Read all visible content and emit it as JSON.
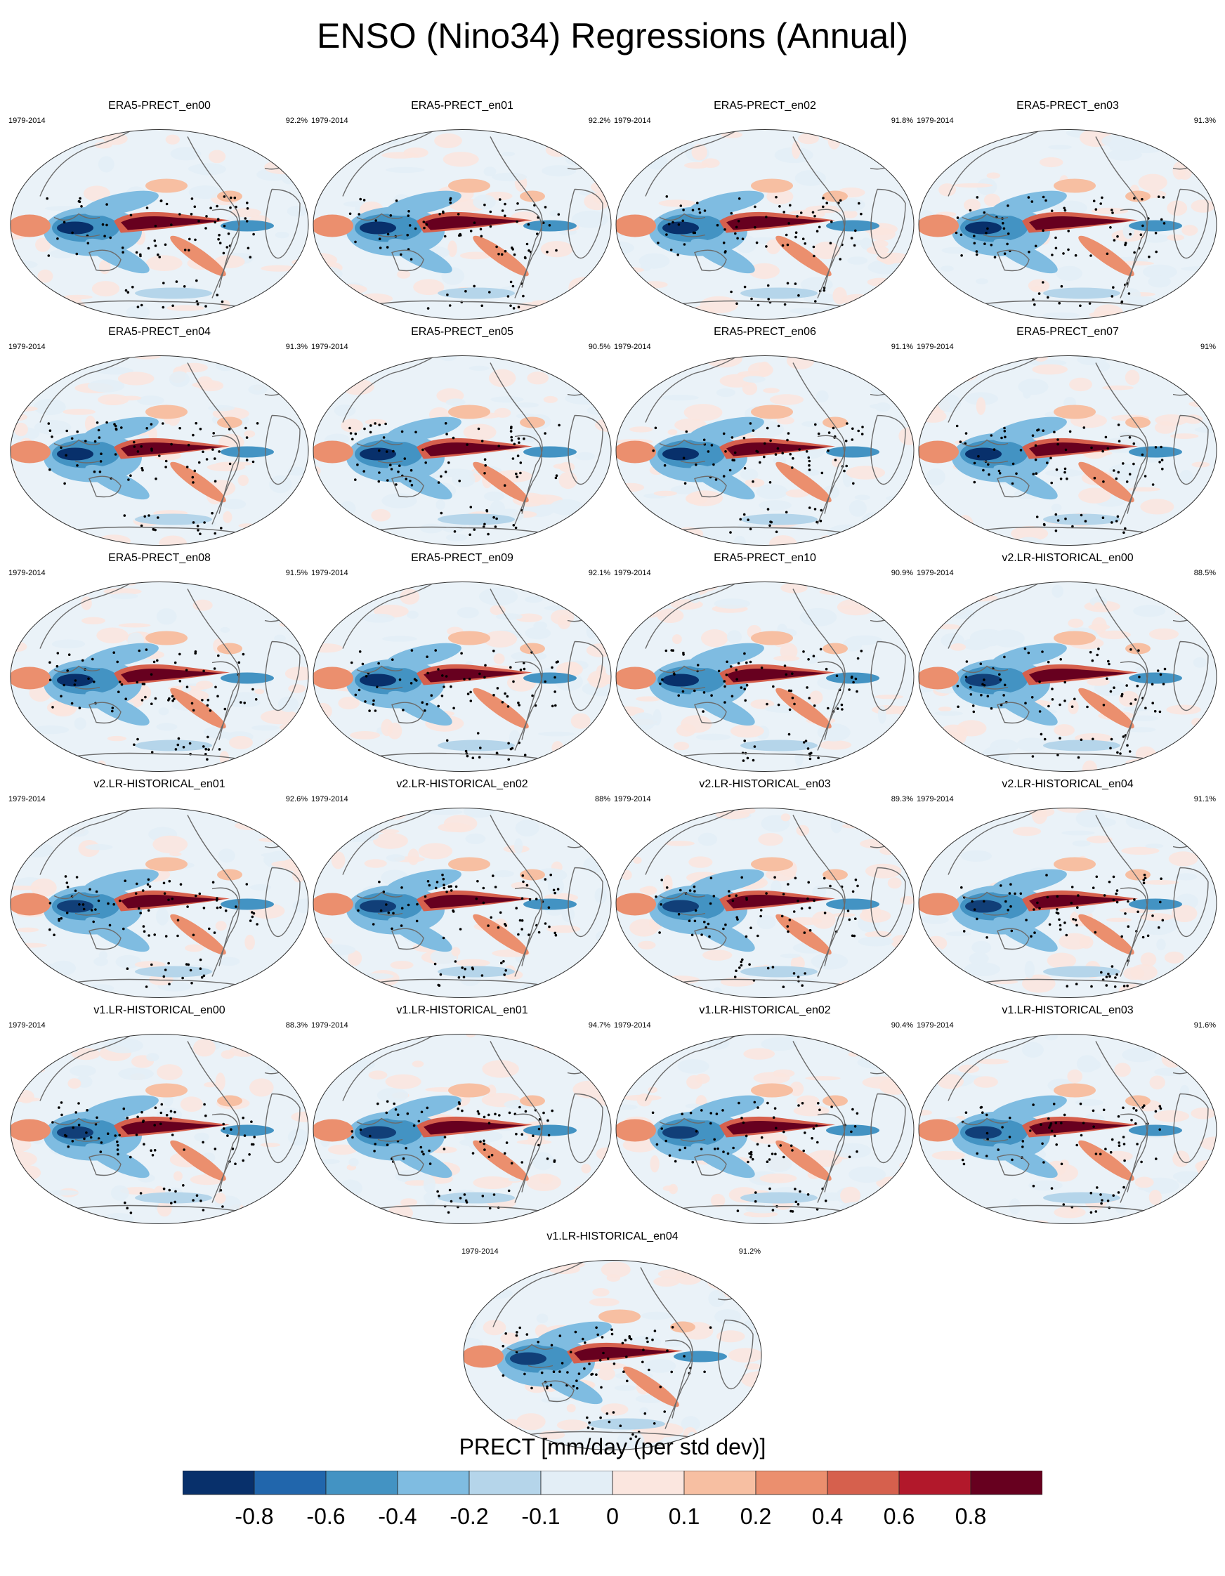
{
  "title": "ENSO (Nino34) Regressions (Annual)",
  "panels": [
    {
      "name": "ERA5-PRECT_en00",
      "period": "1979-2014",
      "pct": "92.2%",
      "group": "era5"
    },
    {
      "name": "ERA5-PRECT_en01",
      "period": "1979-2014",
      "pct": "92.2%",
      "group": "era5"
    },
    {
      "name": "ERA5-PRECT_en02",
      "period": "1979-2014",
      "pct": "91.8%",
      "group": "era5"
    },
    {
      "name": "ERA5-PRECT_en03",
      "period": "1979-2014",
      "pct": "91.3%",
      "group": "era5"
    },
    {
      "name": "ERA5-PRECT_en04",
      "period": "1979-2014",
      "pct": "91.3%",
      "group": "era5"
    },
    {
      "name": "ERA5-PRECT_en05",
      "period": "1979-2014",
      "pct": "90.5%",
      "group": "era5"
    },
    {
      "name": "ERA5-PRECT_en06",
      "period": "1979-2014",
      "pct": "91.1%",
      "group": "era5"
    },
    {
      "name": "ERA5-PRECT_en07",
      "period": "1979-2014",
      "pct": "91%",
      "group": "era5"
    },
    {
      "name": "ERA5-PRECT_en08",
      "period": "1979-2014",
      "pct": "91.5%",
      "group": "era5"
    },
    {
      "name": "ERA5-PRECT_en09",
      "period": "1979-2014",
      "pct": "92.1%",
      "group": "era5"
    },
    {
      "name": "ERA5-PRECT_en10",
      "period": "1979-2014",
      "pct": "90.9%",
      "group": "era5"
    },
    {
      "name": "v2.LR-HISTORICAL_en00",
      "period": "1979-2014",
      "pct": "88.5%",
      "group": "v2"
    },
    {
      "name": "v2.LR-HISTORICAL_en01",
      "period": "1979-2014",
      "pct": "92.6%",
      "group": "v2"
    },
    {
      "name": "v2.LR-HISTORICAL_en02",
      "period": "1979-2014",
      "pct": "88%",
      "group": "v2"
    },
    {
      "name": "v2.LR-HISTORICAL_en03",
      "period": "1979-2014",
      "pct": "89.3%",
      "group": "v2"
    },
    {
      "name": "v2.LR-HISTORICAL_en04",
      "period": "1979-2014",
      "pct": "91.1%",
      "group": "v2"
    },
    {
      "name": "v1.LR-HISTORICAL_en00",
      "period": "1979-2014",
      "pct": "88.3%",
      "group": "v1"
    },
    {
      "name": "v1.LR-HISTORICAL_en01",
      "period": "1979-2014",
      "pct": "94.7%",
      "group": "v1"
    },
    {
      "name": "v1.LR-HISTORICAL_en02",
      "period": "1979-2014",
      "pct": "90.4%",
      "group": "v1"
    },
    {
      "name": "v1.LR-HISTORICAL_en03",
      "period": "1979-2014",
      "pct": "91.6%",
      "group": "v1"
    },
    {
      "name": "v1.LR-HISTORICAL_en04",
      "period": "1979-2014",
      "pct": "91.2%",
      "group": "v1"
    }
  ],
  "colorbar": {
    "title": "PRECT [mm/day (per std dev)]",
    "tick_labels": [
      "-0.8",
      "-0.6",
      "-0.4",
      "-0.2",
      "-0.1",
      "0",
      "0.1",
      "0.2",
      "0.4",
      "0.6",
      "0.8"
    ],
    "colors": [
      "#08306b",
      "#2166ac",
      "#4393c3",
      "#7fbce1",
      "#b5d5ea",
      "#e3eef6",
      "#fbe6df",
      "#f7bfa2",
      "#eb8f6e",
      "#d6604d",
      "#b2182b",
      "#67001f"
    ]
  },
  "chart_data": {
    "type": "heatmap",
    "title": "ENSO (Nino34) Regressions (Annual)",
    "colorbar_label": "PRECT [mm/day (per std dev)]",
    "levels": [
      -0.8,
      -0.6,
      -0.4,
      -0.2,
      -0.1,
      0,
      0.1,
      0.2,
      0.4,
      0.6,
      0.8
    ],
    "panel_count": 21,
    "period": "1979-2014",
    "pattern_correlations_percent": [
      92.2,
      92.2,
      91.8,
      91.3,
      91.3,
      90.5,
      91.1,
      91,
      91.5,
      92.1,
      90.9,
      88.5,
      92.6,
      88,
      89.3,
      91.1,
      88.3,
      94.7,
      90.4,
      91.6,
      91.2
    ]
  }
}
